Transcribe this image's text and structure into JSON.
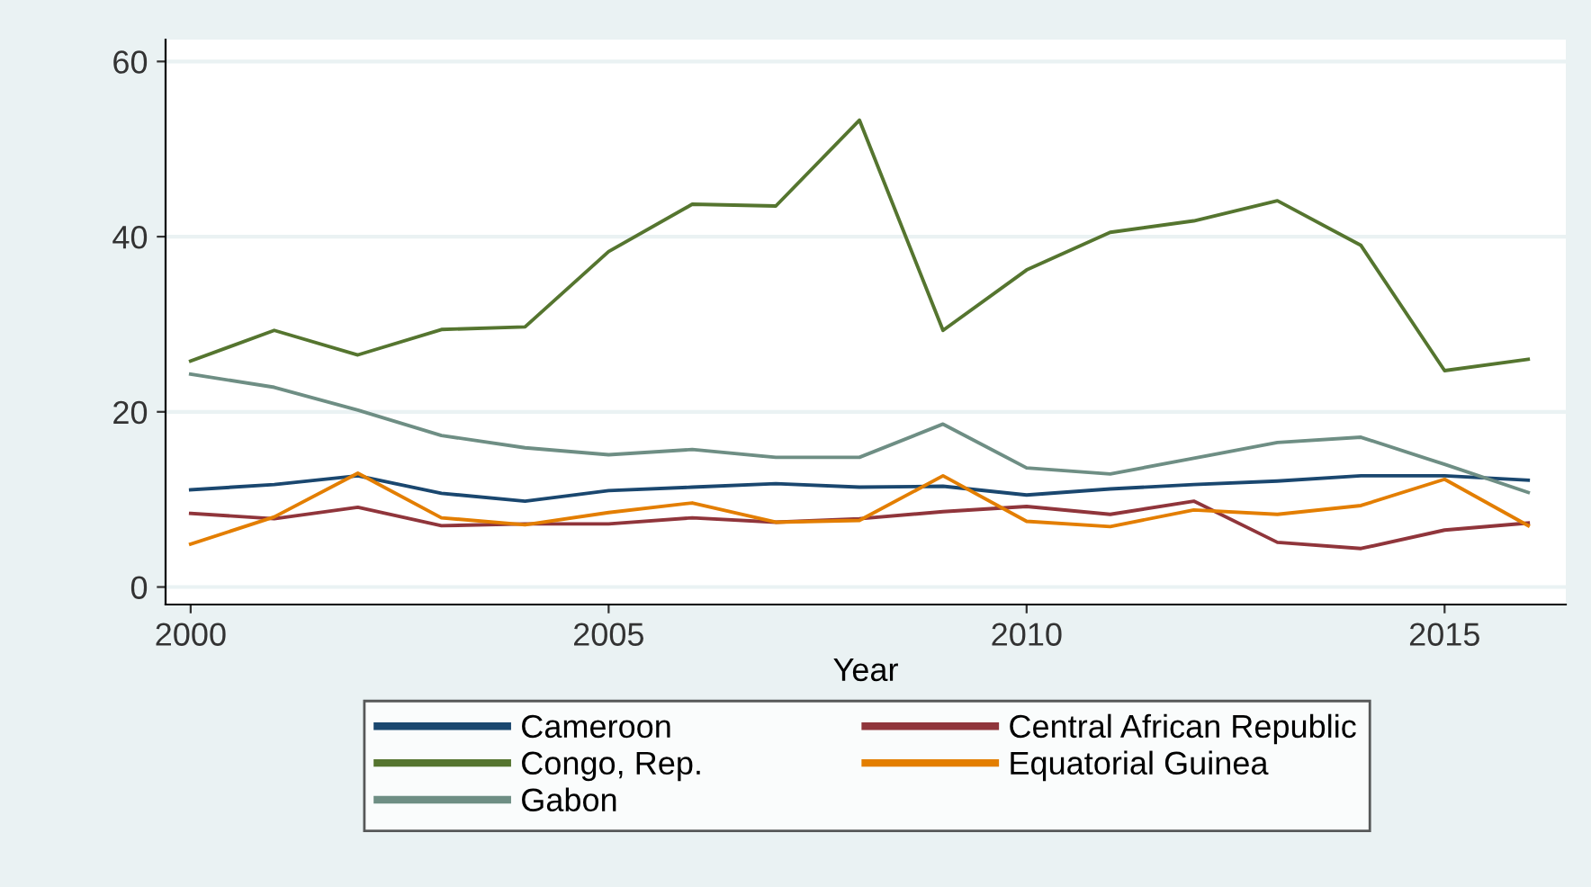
{
  "chart_data": {
    "type": "line",
    "xlabel": "Year",
    "x": [
      2000,
      2001,
      2002,
      2003,
      2004,
      2005,
      2006,
      2007,
      2008,
      2009,
      2010,
      2011,
      2012,
      2013,
      2014,
      2015,
      2016
    ],
    "series": [
      {
        "name": "Cameroon",
        "color": "#1a476f",
        "values": [
          11.1,
          11.7,
          12.7,
          10.7,
          9.8,
          11.0,
          11.4,
          11.8,
          11.4,
          11.5,
          10.5,
          11.2,
          11.7,
          12.1,
          12.7,
          12.7,
          12.2
        ]
      },
      {
        "name": "Central African Republic",
        "color": "#90353b",
        "values": [
          8.4,
          7.8,
          9.1,
          7.0,
          7.2,
          7.2,
          7.9,
          7.4,
          7.8,
          8.6,
          9.2,
          8.3,
          9.8,
          5.1,
          4.4,
          6.5,
          7.3
        ]
      },
      {
        "name": "Congo, Rep.",
        "color": "#55752f",
        "values": [
          25.8,
          29.3,
          26.5,
          29.4,
          29.7,
          38.3,
          43.7,
          43.5,
          53.3,
          29.3,
          36.2,
          40.5,
          41.8,
          44.1,
          39.0,
          24.7,
          26.0
        ]
      },
      {
        "name": "Equatorial Guinea",
        "color": "#e37e00",
        "values": [
          4.9,
          8.0,
          13.0,
          7.9,
          7.1,
          8.5,
          9.6,
          7.4,
          7.6,
          12.7,
          7.5,
          6.9,
          8.8,
          8.3,
          9.3,
          12.3,
          7.0
        ]
      },
      {
        "name": "Gabon",
        "color": "#6e8e84",
        "values": [
          24.3,
          22.8,
          20.2,
          17.3,
          15.9,
          15.1,
          15.7,
          14.8,
          14.8,
          18.6,
          13.6,
          12.9,
          14.7,
          16.5,
          17.1,
          14.0,
          10.8
        ]
      }
    ],
    "xlim": [
      1999.7,
      2016.45
    ],
    "xticks": [
      2000,
      2005,
      2010,
      2015
    ],
    "ylim": [
      -2,
      62.5
    ],
    "yticks": [
      0,
      20,
      40,
      60
    ],
    "grid": "y",
    "legend": "bottom",
    "marker": "none",
    "line_style": "solid"
  }
}
